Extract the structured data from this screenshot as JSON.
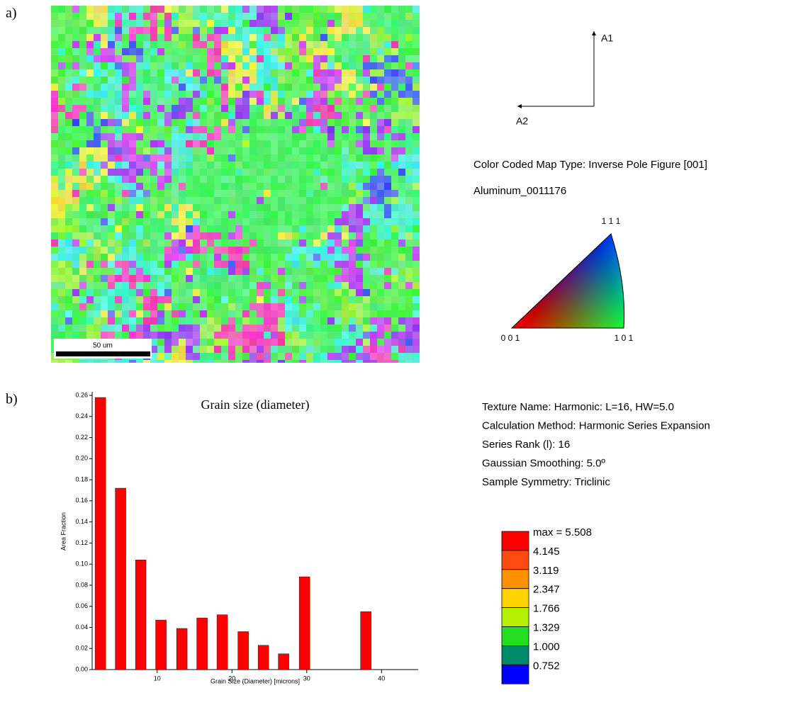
{
  "panel_labels": [
    "a)",
    "b)"
  ],
  "map": {
    "scale_bar": "50 um",
    "axes": {
      "a1": "A1",
      "a2": "A2"
    },
    "map_type": "Color Coded Map Type: Inverse Pole Figure [001]",
    "phase": "Aluminum_0011176",
    "key": {
      "top": "1 1 1",
      "left": "0 0 1",
      "right": "1 0 1"
    }
  },
  "chart_data": {
    "type": "bar",
    "title": "Grain size (diameter)",
    "x_label": "Grain Size (Diameter) [microns]",
    "y_label": "Area Fraction",
    "x": [
      2.4,
      5.1,
      7.8,
      10.5,
      13.3,
      16.0,
      18.7,
      21.5,
      24.2,
      26.9,
      29.7,
      37.9
    ],
    "values": [
      0.258,
      0.172,
      0.104,
      0.047,
      0.039,
      0.049,
      0.052,
      0.036,
      0.023,
      0.015,
      0.088,
      0.055
    ],
    "color": "#ff0000",
    "xlim": [
      1.3,
      44.9
    ],
    "xticks": [
      10,
      20,
      30,
      40
    ],
    "ylim": [
      0,
      0.26
    ],
    "yticks": [
      {
        "value": 0,
        "label": "0.00"
      },
      {
        "value": 0.02,
        "label": "0.02"
      },
      {
        "value": 0.04,
        "label": "0.04"
      },
      {
        "value": 0.06,
        "label": "0.06"
      },
      {
        "value": 0.08,
        "label": "0.08"
      },
      {
        "value": 0.1,
        "label": "0.10"
      },
      {
        "value": 0.12,
        "label": "0.12"
      },
      {
        "value": 0.14,
        "label": "0.14"
      },
      {
        "value": 0.16,
        "label": "0.16"
      },
      {
        "value": 0.18,
        "label": "0.18"
      },
      {
        "value": 0.2,
        "label": "0.20"
      },
      {
        "value": 0.22,
        "label": "0.22"
      },
      {
        "value": 0.24,
        "label": "0.24"
      },
      {
        "value": 0.26,
        "label": "0.26"
      }
    ],
    "grid": false
  },
  "texture_info": [
    "Texture Name: Harmonic: L=16, HW=5.0",
    "Calculation Method: Harmonic Series Expansion",
    "Series Rank (l): 16",
    "Gaussian Smoothing: 5.0º",
    "Sample Symmetry: Triclinic"
  ],
  "color_scale": [
    {
      "label": "max = 5.508",
      "color": "#ff0000"
    },
    {
      "label": "4.145",
      "color": "#ff4a10"
    },
    {
      "label": "3.119",
      "color": "#ff9000"
    },
    {
      "label": "2.347",
      "color": "#ffd400"
    },
    {
      "label": "1.766",
      "color": "#b4f000"
    },
    {
      "label": "1.329",
      "color": "#22dd22"
    },
    {
      "label": "1.000",
      "color": "#008a6a"
    },
    {
      "label": "0.752",
      "color": "#0000ff"
    }
  ]
}
